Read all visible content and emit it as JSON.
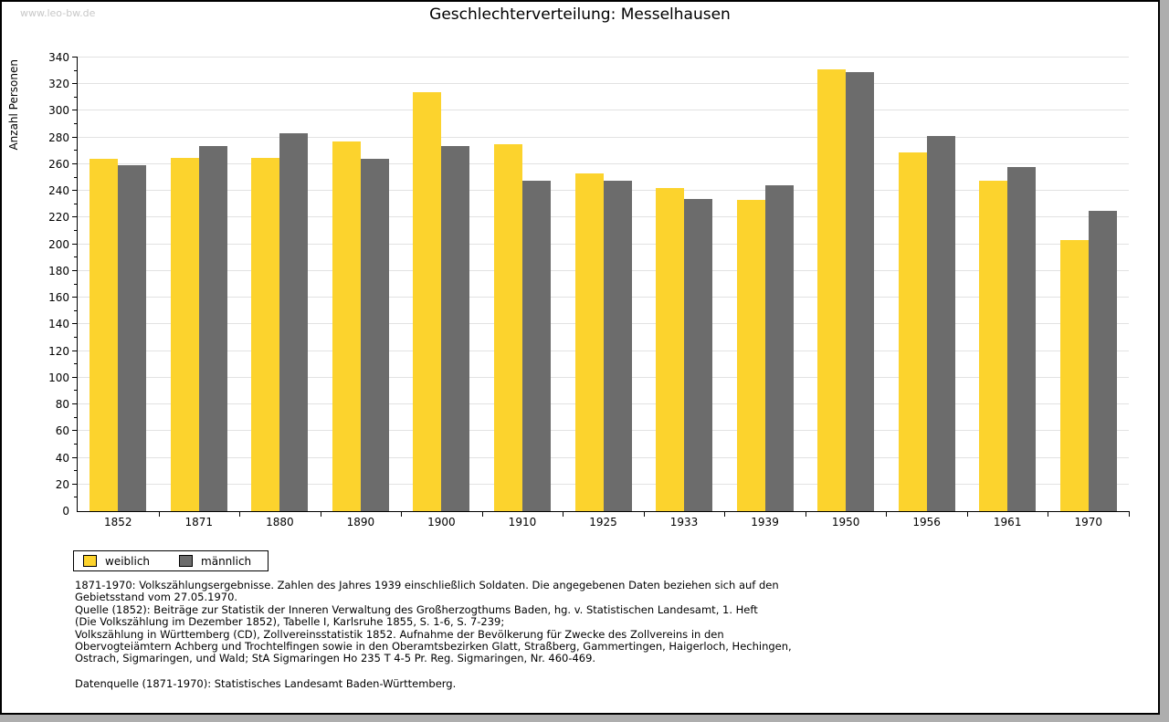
{
  "watermark": "www.leo-bw.de",
  "title": "Geschlechterverteilung: Messelhausen",
  "chart_data": {
    "type": "bar",
    "title": "Geschlechterverteilung: Messelhausen",
    "xlabel": "",
    "ylabel": "Anzahl Personen",
    "ylim": [
      0,
      340
    ],
    "ytick_step": 20,
    "ytick_minor_step": 10,
    "grid": true,
    "legend_position": "bottom-left",
    "categories": [
      "1852",
      "1871",
      "1880",
      "1890",
      "1900",
      "1910",
      "1925",
      "1933",
      "1939",
      "1950",
      "1956",
      "1961",
      "1970"
    ],
    "series": [
      {
        "name": "weiblich",
        "color": "#fcd32d",
        "values": [
          264,
          265,
          265,
          277,
          314,
          275,
          253,
          242,
          233,
          331,
          269,
          248,
          203
        ]
      },
      {
        "name": "männlich",
        "color": "#6c6c6c",
        "values": [
          259,
          274,
          283,
          264,
          274,
          248,
          248,
          234,
          244,
          329,
          281,
          258,
          225
        ]
      }
    ]
  },
  "footnotes": {
    "lines": [
      "1871-1970: Volkszählungsergebnisse. Zahlen des Jahres 1939 einschließlich Soldaten. Die angegebenen Daten beziehen sich auf den",
      "Gebietsstand vom 27.05.1970.",
      "Quelle (1852): Beiträge zur Statistik der Inneren Verwaltung des Großherzogthums Baden, hg. v. Statistischen Landesamt, 1. Heft",
      "(Die Volkszählung im Dezember 1852), Tabelle I, Karlsruhe 1855, S. 1-6, S. 7-239;",
      "Volkszählung in Württemberg (CD), Zollvereinsstatistik 1852. Aufnahme der Bevölkerung für Zwecke des Zollvereins in den",
      "Obervogteiämtern Achberg und Trochtelfingen sowie in den Oberamtsbezirken Glatt, Straßberg, Gammertingen, Haigerloch, Hechingen,",
      "Ostrach, Sigmaringen, und Wald; StA Sigmaringen Ho 235 T 4-5 Pr. Reg. Sigmaringen, Nr. 460-469."
    ],
    "datasource": "Datenquelle (1871-1970): Statistisches Landesamt Baden-Württemberg."
  },
  "colors": {
    "bar_female": "#fcd32d",
    "bar_male": "#6c6c6c",
    "gridline": "#e2e2e2",
    "watermark": "#c8c8c8",
    "frame_border": "#000000",
    "outer_background": "#aeaeae"
  }
}
